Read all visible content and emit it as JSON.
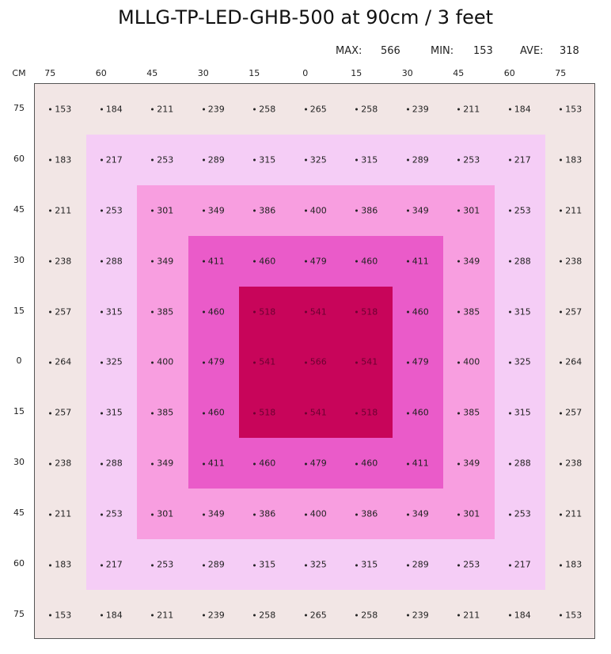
{
  "title": "MLLG-TP-LED-GHB-500 at 90cm / 3 feet",
  "stats": {
    "max_label": "MAX:",
    "max_value": "566",
    "min_label": "MIN:",
    "min_value": "153",
    "ave_label": "AVE:",
    "ave_value": "318"
  },
  "chart_data": {
    "type": "heatmap",
    "title": "MLLG-TP-LED-GHB-500 at 90cm / 3 feet",
    "unit_label": "CM",
    "x_ticks": [
      "75",
      "60",
      "45",
      "30",
      "15",
      "0",
      "15",
      "30",
      "45",
      "60",
      "75"
    ],
    "y_ticks": [
      "75",
      "60",
      "45",
      "30",
      "15",
      "0",
      "15",
      "30",
      "45",
      "60",
      "75"
    ],
    "values": [
      [
        153,
        184,
        211,
        239,
        258,
        265,
        258,
        239,
        211,
        184,
        153
      ],
      [
        183,
        217,
        253,
        289,
        315,
        325,
        315,
        289,
        253,
        217,
        183
      ],
      [
        211,
        253,
        301,
        349,
        386,
        400,
        386,
        349,
        301,
        253,
        211
      ],
      [
        238,
        288,
        349,
        411,
        460,
        479,
        460,
        411,
        349,
        288,
        238
      ],
      [
        257,
        315,
        385,
        460,
        518,
        541,
        518,
        460,
        385,
        315,
        257
      ],
      [
        264,
        325,
        400,
        479,
        541,
        566,
        541,
        479,
        400,
        325,
        264
      ],
      [
        257,
        315,
        385,
        460,
        518,
        541,
        518,
        460,
        385,
        315,
        257
      ],
      [
        238,
        288,
        349,
        411,
        460,
        479,
        460,
        411,
        349,
        288,
        238
      ],
      [
        211,
        253,
        301,
        349,
        386,
        400,
        386,
        349,
        301,
        253,
        211
      ],
      [
        183,
        217,
        253,
        289,
        315,
        325,
        315,
        289,
        253,
        217,
        183
      ],
      [
        153,
        184,
        211,
        239,
        258,
        265,
        258,
        239,
        211,
        184,
        153
      ]
    ],
    "zone_colors": [
      "#f2e6e5",
      "#f5cdf6",
      "#f89ee0",
      "#ea5bc9",
      "#c8055a"
    ],
    "grid": false
  }
}
